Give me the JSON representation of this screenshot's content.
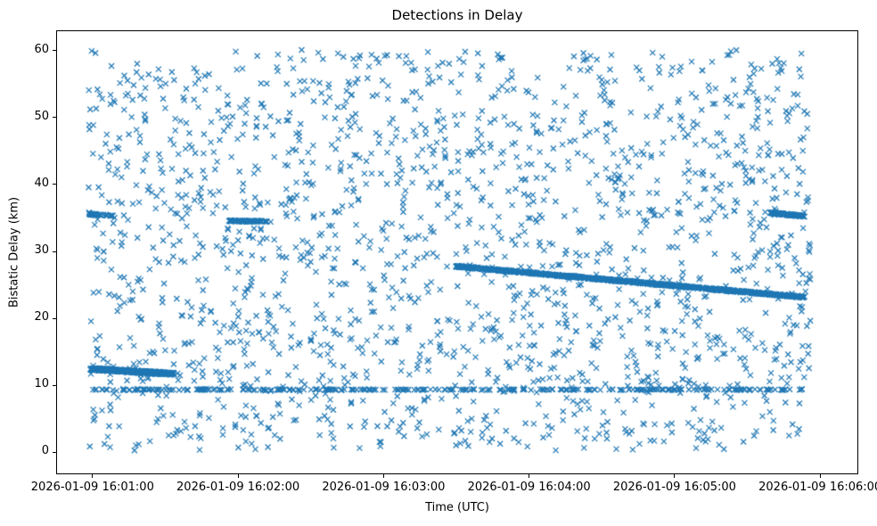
{
  "title": "Detections in Delay",
  "chart_data": {
    "type": "scatter",
    "title": "Detections in Delay",
    "xlabel": "Time (UTC)",
    "ylabel": "Bistatic Delay (km)",
    "marker": "x",
    "marker_color": "#1f77b4",
    "grid": false,
    "legend": "none",
    "x_tick_labels": [
      "2026-01-09 16:01:00",
      "2026-01-09 16:02:00",
      "2026-01-09 16:03:00",
      "2026-01-09 16:04:00",
      "2026-01-09 16:05:00",
      "2026-01-09 16:06:00"
    ],
    "x_tick_seconds": [
      60,
      120,
      180,
      240,
      300,
      360
    ],
    "xlim_seconds": [
      45,
      375
    ],
    "y_ticks": [
      0,
      10,
      20,
      30,
      40,
      50,
      60
    ],
    "y_tick_labels": [
      "0",
      "10",
      "20",
      "30",
      "40",
      "50",
      "60"
    ],
    "ylim": [
      -3,
      63
    ],
    "clutter": {
      "description": "uniform random background detections",
      "seed": 42,
      "n": 1900,
      "t_range_seconds": [
        58,
        356
      ],
      "y_range_km": [
        0.4,
        60.2
      ]
    },
    "tracks": [
      {
        "name": "dense-track-left",
        "t0": 59,
        "y0": 12.6,
        "t1": 93,
        "y1": 11.85,
        "n": 420,
        "t_jitter": 0.8,
        "y_jitter": 0.18
      },
      {
        "name": "horizontal-line-9p5km",
        "t0": 60,
        "y0": 9.5,
        "t1": 353,
        "y1": 9.5,
        "n": 300,
        "t_jitter": 0.8,
        "y_jitter": 0.07
      },
      {
        "name": "dense-descending-track",
        "t0": 210,
        "y0": 27.9,
        "t1": 353,
        "y1": 23.3,
        "n": 950,
        "t_jitter": 0.8,
        "y_jitter": 0.12
      },
      {
        "name": "short-dense-segment-right-35p5km",
        "t0": 339,
        "y0": 35.9,
        "t1": 353,
        "y1": 35.4,
        "n": 130,
        "t_jitter": 0.5,
        "y_jitter": 0.1
      },
      {
        "name": "short-dense-segment-left-35p6km",
        "t0": 58,
        "y0": 35.7,
        "t1": 68,
        "y1": 35.5,
        "n": 45,
        "t_jitter": 0.5,
        "y_jitter": 0.1
      },
      {
        "name": "short-dense-segment-34p6km",
        "t0": 116,
        "y0": 34.7,
        "t1": 133,
        "y1": 34.6,
        "n": 70,
        "t_jitter": 0.5,
        "y_jitter": 0.1
      }
    ]
  }
}
